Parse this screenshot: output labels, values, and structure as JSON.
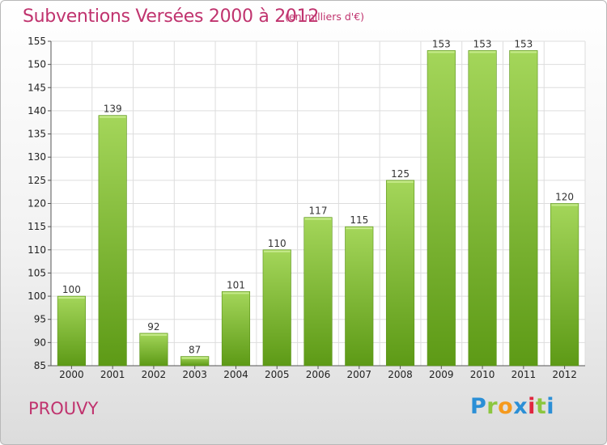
{
  "chart_data": {
    "type": "bar",
    "title": "Subventions Versées 2000 à 2012",
    "subtitle": "(en milliers d'€)",
    "categories": [
      "2000",
      "2001",
      "2002",
      "2003",
      "2004",
      "2005",
      "2006",
      "2007",
      "2008",
      "2009",
      "2010",
      "2011",
      "2012"
    ],
    "values": [
      100,
      139,
      92,
      87,
      101,
      110,
      117,
      115,
      125,
      153,
      153,
      153,
      120
    ],
    "ylim": [
      85,
      155
    ],
    "yticks": [
      85,
      90,
      95,
      100,
      105,
      110,
      115,
      120,
      125,
      130,
      135,
      140,
      145,
      150,
      155
    ],
    "grid": true,
    "bar_color": "#7ab82e"
  },
  "footer": {
    "commune": "PROUVY",
    "logo_letters": [
      "P",
      "r",
      "o",
      "x",
      "i",
      "t",
      "i"
    ]
  }
}
